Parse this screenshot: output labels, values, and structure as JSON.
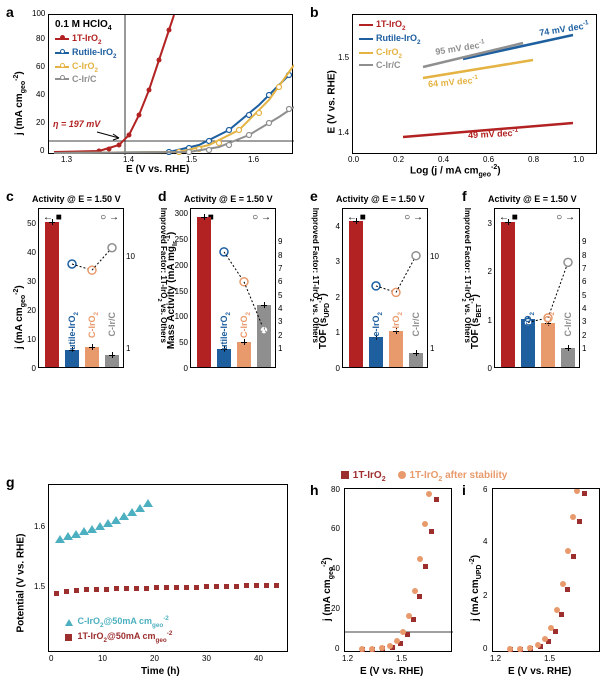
{
  "colors": {
    "red": "#b22222",
    "blue": "#1e5fa0",
    "yellow": "#e4b343",
    "gray": "#8f8f8f",
    "orange": "#e89a6c",
    "darkred": "#9c2e2e",
    "teal": "#4db0c0"
  },
  "panel_a": {
    "label": "a",
    "title": "0.1 M HClO₄",
    "xlabel": "E (V vs. RHE)",
    "ylabel": "j (mA cm_geo⁻²)",
    "xticks": [
      "1.3",
      "1.4",
      "1.5",
      "1.6"
    ],
    "yticks": [
      "0",
      "20",
      "40",
      "60",
      "80",
      "100"
    ],
    "legend": [
      {
        "label": "1T-IrO₂",
        "color": "#b22222"
      },
      {
        "label": "Rutile-IrO₂",
        "color": "#1e5fa0"
      },
      {
        "label": "C-IrO₂",
        "color": "#e4b343"
      },
      {
        "label": "C-Ir/C",
        "color": "#8f8f8f"
      }
    ],
    "annotation": "η = 197 mV"
  },
  "panel_b": {
    "label": "b",
    "xlabel": "Log (j / mA cm_geo⁻²)",
    "ylabel": "E (V vs. RHE)",
    "xticks": [
      "0.0",
      "0.2",
      "0.4",
      "0.6",
      "0.8",
      "1.0"
    ],
    "yticks": [
      "1.4",
      "1.5"
    ],
    "legend": [
      {
        "label": "1T-IrO₂",
        "color": "#b22222"
      },
      {
        "label": "Rutile-IrO₂",
        "color": "#1e5fa0"
      },
      {
        "label": "C-IrO₂",
        "color": "#e4b343"
      },
      {
        "label": "C-Ir/C",
        "color": "#8f8f8f"
      }
    ],
    "slopes": [
      "49 mV dec⁻¹",
      "64 mV dec⁻¹",
      "74 mV dec⁻¹",
      "95 mV dec⁻¹"
    ]
  },
  "panel_c": {
    "label": "c",
    "title": "Activity @ E = 1.50 V",
    "xlabel_cats": [
      "1T-IrO₂",
      "Rutile-IrO₂",
      "C-IrO₂",
      "C-Ir/C"
    ],
    "ylabel": "j (mA cm_geo⁻²)",
    "ylabel2": "Improved Factor: 1T-IrO₂ vs. Others",
    "yticks": [
      "0",
      "10",
      "20",
      "30",
      "40",
      "50"
    ],
    "yticks2": [
      "1",
      "10"
    ],
    "values": [
      50,
      6,
      7,
      4
    ],
    "bar_colors": [
      "#b22222",
      "#1e5fa0",
      "#e89a6c",
      "#8f8f8f"
    ]
  },
  "panel_d": {
    "label": "d",
    "title": "Activity @ E = 1.50 V",
    "xlabel_cats": [
      "1T-IrO₂",
      "Rutile-IrO₂",
      "C-IrO₂",
      "C-Ir/C"
    ],
    "ylabel": "Mass Activity (mA mg_Ir⁻¹)",
    "ylabel2": "Improved Factor: 1T-IrO₂ vs. Others",
    "yticks": [
      "0",
      "50",
      "100",
      "150",
      "200",
      "250",
      "300"
    ],
    "yticks2": [
      "1",
      "2",
      "3",
      "4",
      "5",
      "6",
      "7",
      "8",
      "9"
    ],
    "values": [
      290,
      35,
      48,
      120
    ],
    "bar_colors": [
      "#b22222",
      "#1e5fa0",
      "#e89a6c",
      "#8f8f8f"
    ]
  },
  "panel_e": {
    "label": "e",
    "title": "Activity @ E = 1.50 V",
    "xlabel_cats": [
      "1T-IrO₂",
      "Rutile-IrO₂",
      "C-IrO₂",
      "C-Ir/C"
    ],
    "ylabel": "TOF (s_UPD⁻¹)",
    "ylabel2": "Improved Factor: 1T-IrO₂ vs. Others",
    "yticks": [
      "0",
      "1",
      "2",
      "3",
      "4"
    ],
    "yticks2": [
      "1",
      "10"
    ],
    "values": [
      4.1,
      0.85,
      1.0,
      0.4
    ],
    "bar_colors": [
      "#b22222",
      "#1e5fa0",
      "#e89a6c",
      "#8f8f8f"
    ]
  },
  "panel_f": {
    "label": "f",
    "title": "Activity @ E = 1.50 V",
    "xlabel_cats": [
      "1T-IrO₂",
      "Rutile-IrO₂",
      "C-IrO₂",
      "C-Ir/C"
    ],
    "ylabel": "TOF (s_BET⁻¹)",
    "ylabel2": "Improved Factor: 1T-IrO₂ vs. Others",
    "yticks": [
      "0",
      "1",
      "2",
      "3"
    ],
    "yticks2": [
      "1",
      "2",
      "3",
      "4",
      "5",
      "6",
      "7",
      "8",
      "9"
    ],
    "values": [
      3.0,
      1.0,
      0.9,
      0.4
    ],
    "bar_colors": [
      "#b22222",
      "#1e5fa0",
      "#e89a6c",
      "#8f8f8f"
    ]
  },
  "panel_g": {
    "label": "g",
    "xlabel": "Time (h)",
    "ylabel": "Potential (V vs. RHE)",
    "xticks": [
      "0",
      "10",
      "20",
      "30",
      "40"
    ],
    "yticks": [
      "1.5",
      "1.6"
    ],
    "legend": [
      {
        "label": "C-IrO₂@50mA cm_geo⁻²",
        "color": "#4db0c0",
        "marker": "triangle"
      },
      {
        "label": "1T-IrO₂@50mA cm_geo⁻²",
        "color": "#9c2e2e",
        "marker": "square"
      }
    ]
  },
  "panel_h": {
    "label": "h",
    "xlabel": "E (V vs. RHE)",
    "ylabel": "j (mA cm_geo⁻²)",
    "xticks": [
      "1.2",
      "1.5"
    ],
    "yticks": [
      "0",
      "20",
      "40",
      "60",
      "80"
    ]
  },
  "panel_i": {
    "label": "i",
    "xlabel": "E (V vs. RHE)",
    "ylabel": "j (mA cm_UPD⁻²)",
    "xticks": [
      "1.2",
      "1.5"
    ],
    "yticks": [
      "0",
      "2",
      "4",
      "6"
    ]
  },
  "hi_legend": [
    {
      "label": "1T-IrO₂",
      "color": "#9c2e2e",
      "marker": "square"
    },
    {
      "label": "1T-IrO₂ after stability",
      "color": "#e89a6c",
      "marker": "circle"
    }
  ]
}
